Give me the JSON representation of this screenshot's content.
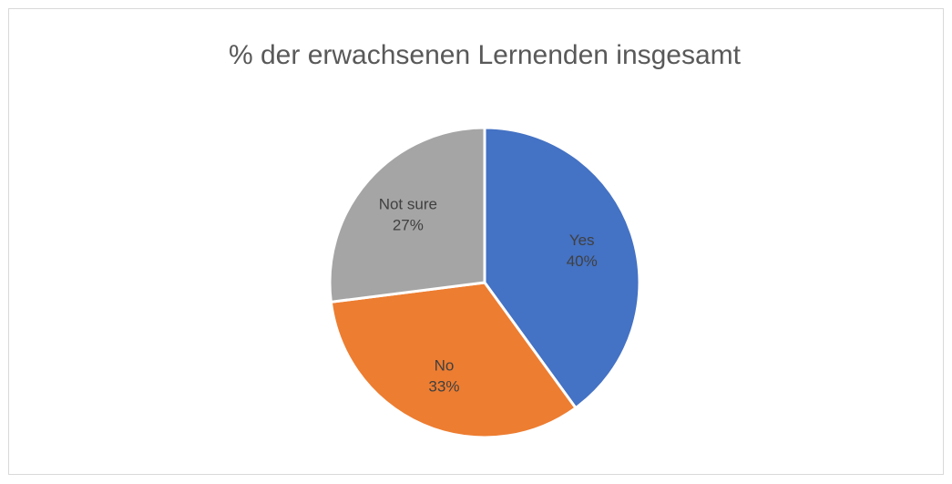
{
  "chart_data": {
    "type": "pie",
    "title": "% der erwachsenen Lernenden insgesamt",
    "categories": [
      "Yes",
      "No",
      "Not sure"
    ],
    "values": [
      40,
      33,
      27
    ],
    "value_labels": [
      "40%",
      "33%",
      "27%"
    ],
    "colors": [
      "#4472c4",
      "#ed7d31",
      "#a5a5a5"
    ]
  }
}
